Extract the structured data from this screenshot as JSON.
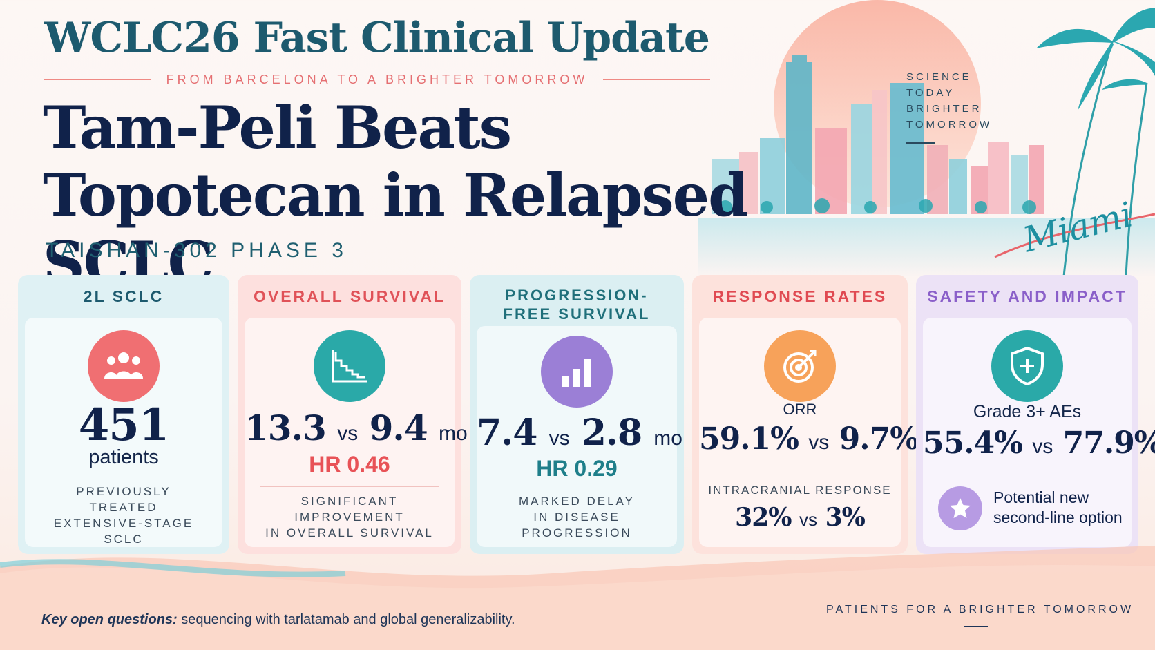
{
  "header": {
    "event_title": "WCLC26 Fast Clinical Update",
    "tagline": "FROM BARCELONA TO A BRIGHTER TOMORROW",
    "headline": "Tam-Peli Beats Topotecan in Relapsed SCLC",
    "trial": "TAISHAN-302 PHASE 3"
  },
  "art": {
    "right_tagline": [
      "SCIENCE",
      "TODAY",
      "BRIGHTER",
      "TOMORROW"
    ],
    "city": "Miami"
  },
  "cards": [
    {
      "title": "2L SCLC",
      "icon": "patients-icon",
      "big": "451",
      "sub": "patients",
      "note": [
        "PREVIOUSLY",
        "TREATED",
        "EXTENSIVE-STAGE",
        "SCLC"
      ],
      "color": "#f06f72"
    },
    {
      "title": "OVERALL SURVIVAL",
      "icon": "survival-curve-icon",
      "big_a": "13.3",
      "vs": "vs",
      "big_b": "9.4",
      "unit": "mo",
      "hr": "HR 0.46",
      "note": [
        "SIGNIFICANT",
        "IMPROVEMENT",
        "IN OVERALL SURVIVAL"
      ],
      "color": "#e85257"
    },
    {
      "title": "PROGRESSION-FREE SURVIVAL",
      "icon": "bar-chart-icon",
      "big_a": "7.4",
      "vs": "vs",
      "big_b": "2.8",
      "unit": "mo",
      "hr": "HR 0.29",
      "note": [
        "MARKED DELAY",
        "IN DISEASE",
        "PROGRESSION"
      ],
      "color": "#1f7f8a"
    },
    {
      "title": "RESPONSE RATES",
      "icon": "target-icon",
      "label": "ORR",
      "big_a": "59.1%",
      "vs": "vs",
      "big_b": "9.7%",
      "note_label": "INTRACRANIAL RESPONSE",
      "small_a": "32%",
      "small_b": "3%",
      "color": "#e04a52"
    },
    {
      "title": "SAFETY AND IMPACT",
      "icon": "shield-icon",
      "label": "Grade 3+ AEs",
      "big_a": "55.4%",
      "vs": "vs",
      "big_b": "77.9%",
      "impact": [
        "Potential new",
        "second-line option"
      ],
      "color": "#8a5fc9"
    }
  ],
  "footer": {
    "questions_label": "Key open questions:",
    "questions_text": " sequencing with tarlatamab and global generalizability.",
    "tagline": "PATIENTS FOR A BRIGHTER TOMORROW"
  }
}
